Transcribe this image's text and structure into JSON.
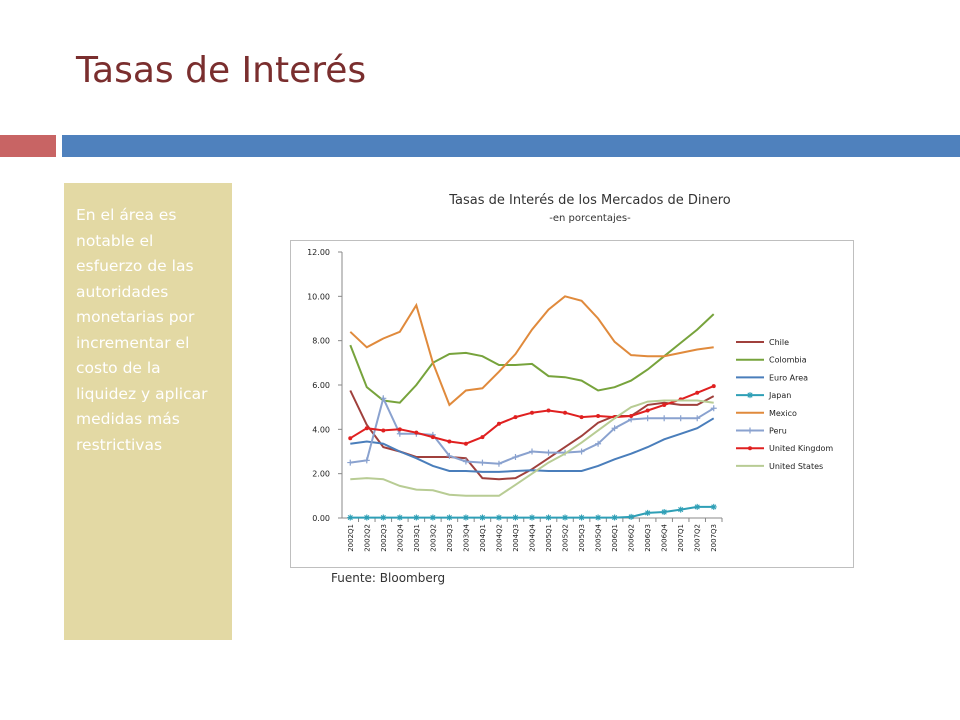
{
  "slide": {
    "title": "Tasas de Interés",
    "side_text": "En el área es notable el esfuerzo de las autoridades monetarias por incrementar el costo de la liquidez y aplicar medidas más restrictivas",
    "source": "Fuente: Bloomberg",
    "colors": {
      "title": "#7a2e2e",
      "accent_red": "#c86464",
      "accent_blue": "#4f81bd",
      "side_box": "#e3d9a4"
    }
  },
  "chart_data": {
    "type": "line",
    "title": "Tasas de Interés de los Mercados de Dinero",
    "subtitle": "-en porcentajes-",
    "xlabel": "",
    "ylabel": "",
    "ylim": [
      0,
      12
    ],
    "yticks": [
      "0.00",
      "2.00",
      "4.00",
      "6.00",
      "8.00",
      "10.00",
      "12.00"
    ],
    "grid": false,
    "legend": "right",
    "categories": [
      "2002Q1",
      "2002Q2",
      "2002Q3",
      "2002Q4",
      "2003Q1",
      "2003Q2",
      "2003Q3",
      "2003Q4",
      "2004Q1",
      "2004Q2",
      "2004Q3",
      "2004Q4",
      "2005Q1",
      "2005Q2",
      "2005Q3",
      "2005Q4",
      "2006Q1",
      "2006Q2",
      "2006Q3",
      "2006Q4",
      "2007Q1",
      "2007Q2",
      "2007Q3"
    ],
    "series": [
      {
        "name": "Chile",
        "color": "#a0403c",
        "marker": "none",
        "values": [
          5.75,
          4.2,
          3.2,
          3.0,
          2.75,
          2.75,
          2.75,
          2.7,
          1.8,
          1.75,
          1.8,
          2.2,
          2.7,
          3.2,
          3.7,
          4.3,
          4.6,
          4.6,
          5.1,
          5.2,
          5.1,
          5.1,
          5.5
        ]
      },
      {
        "name": "Colombia",
        "color": "#77a33c",
        "marker": "none",
        "values": [
          7.8,
          5.9,
          5.3,
          5.2,
          6.0,
          7.0,
          7.4,
          7.45,
          7.3,
          6.9,
          6.9,
          6.95,
          6.4,
          6.35,
          6.2,
          5.75,
          5.9,
          6.2,
          6.7,
          7.3,
          7.9,
          8.5,
          9.2
        ]
      },
      {
        "name": "Euro Area",
        "color": "#4a7ebb",
        "marker": "none",
        "values": [
          3.35,
          3.45,
          3.35,
          3.0,
          2.7,
          2.35,
          2.12,
          2.12,
          2.08,
          2.08,
          2.12,
          2.15,
          2.12,
          2.12,
          2.12,
          2.35,
          2.65,
          2.9,
          3.2,
          3.55,
          3.8,
          4.05,
          4.5
        ]
      },
      {
        "name": "Japan",
        "color": "#2e9fb6",
        "marker": "star",
        "values": [
          0.02,
          0.02,
          0.02,
          0.02,
          0.02,
          0.02,
          0.02,
          0.02,
          0.02,
          0.02,
          0.02,
          0.02,
          0.02,
          0.02,
          0.02,
          0.02,
          0.02,
          0.05,
          0.23,
          0.27,
          0.38,
          0.5,
          0.5
        ]
      },
      {
        "name": "Mexico",
        "color": "#e08a3c",
        "marker": "none",
        "values": [
          8.4,
          7.7,
          8.1,
          8.4,
          9.6,
          7.0,
          5.1,
          5.75,
          5.85,
          6.6,
          7.4,
          8.5,
          9.4,
          10.0,
          9.8,
          9.0,
          7.95,
          7.35,
          7.3,
          7.3,
          7.45,
          7.6,
          7.7
        ]
      },
      {
        "name": "Peru",
        "color": "#8aa2cf",
        "marker": "plus",
        "values": [
          2.5,
          2.6,
          5.4,
          3.8,
          3.8,
          3.75,
          2.8,
          2.55,
          2.5,
          2.45,
          2.75,
          3.0,
          2.95,
          2.95,
          3.0,
          3.35,
          4.05,
          4.45,
          4.5,
          4.5,
          4.5,
          4.5,
          4.95
        ]
      },
      {
        "name": "United Kingdom",
        "color": "#e02020",
        "marker": "circle",
        "values": [
          3.6,
          4.05,
          3.95,
          4.0,
          3.85,
          3.65,
          3.45,
          3.35,
          3.65,
          4.25,
          4.55,
          4.75,
          4.85,
          4.75,
          4.55,
          4.6,
          4.55,
          4.6,
          4.85,
          5.1,
          5.35,
          5.65,
          5.95
        ]
      },
      {
        "name": "United States",
        "color": "#b8cc94",
        "marker": "none",
        "values": [
          1.75,
          1.8,
          1.75,
          1.45,
          1.28,
          1.25,
          1.05,
          1.0,
          1.0,
          1.0,
          1.5,
          2.0,
          2.5,
          2.9,
          3.4,
          3.95,
          4.5,
          5.0,
          5.25,
          5.3,
          5.3,
          5.3,
          5.2
        ]
      }
    ]
  }
}
